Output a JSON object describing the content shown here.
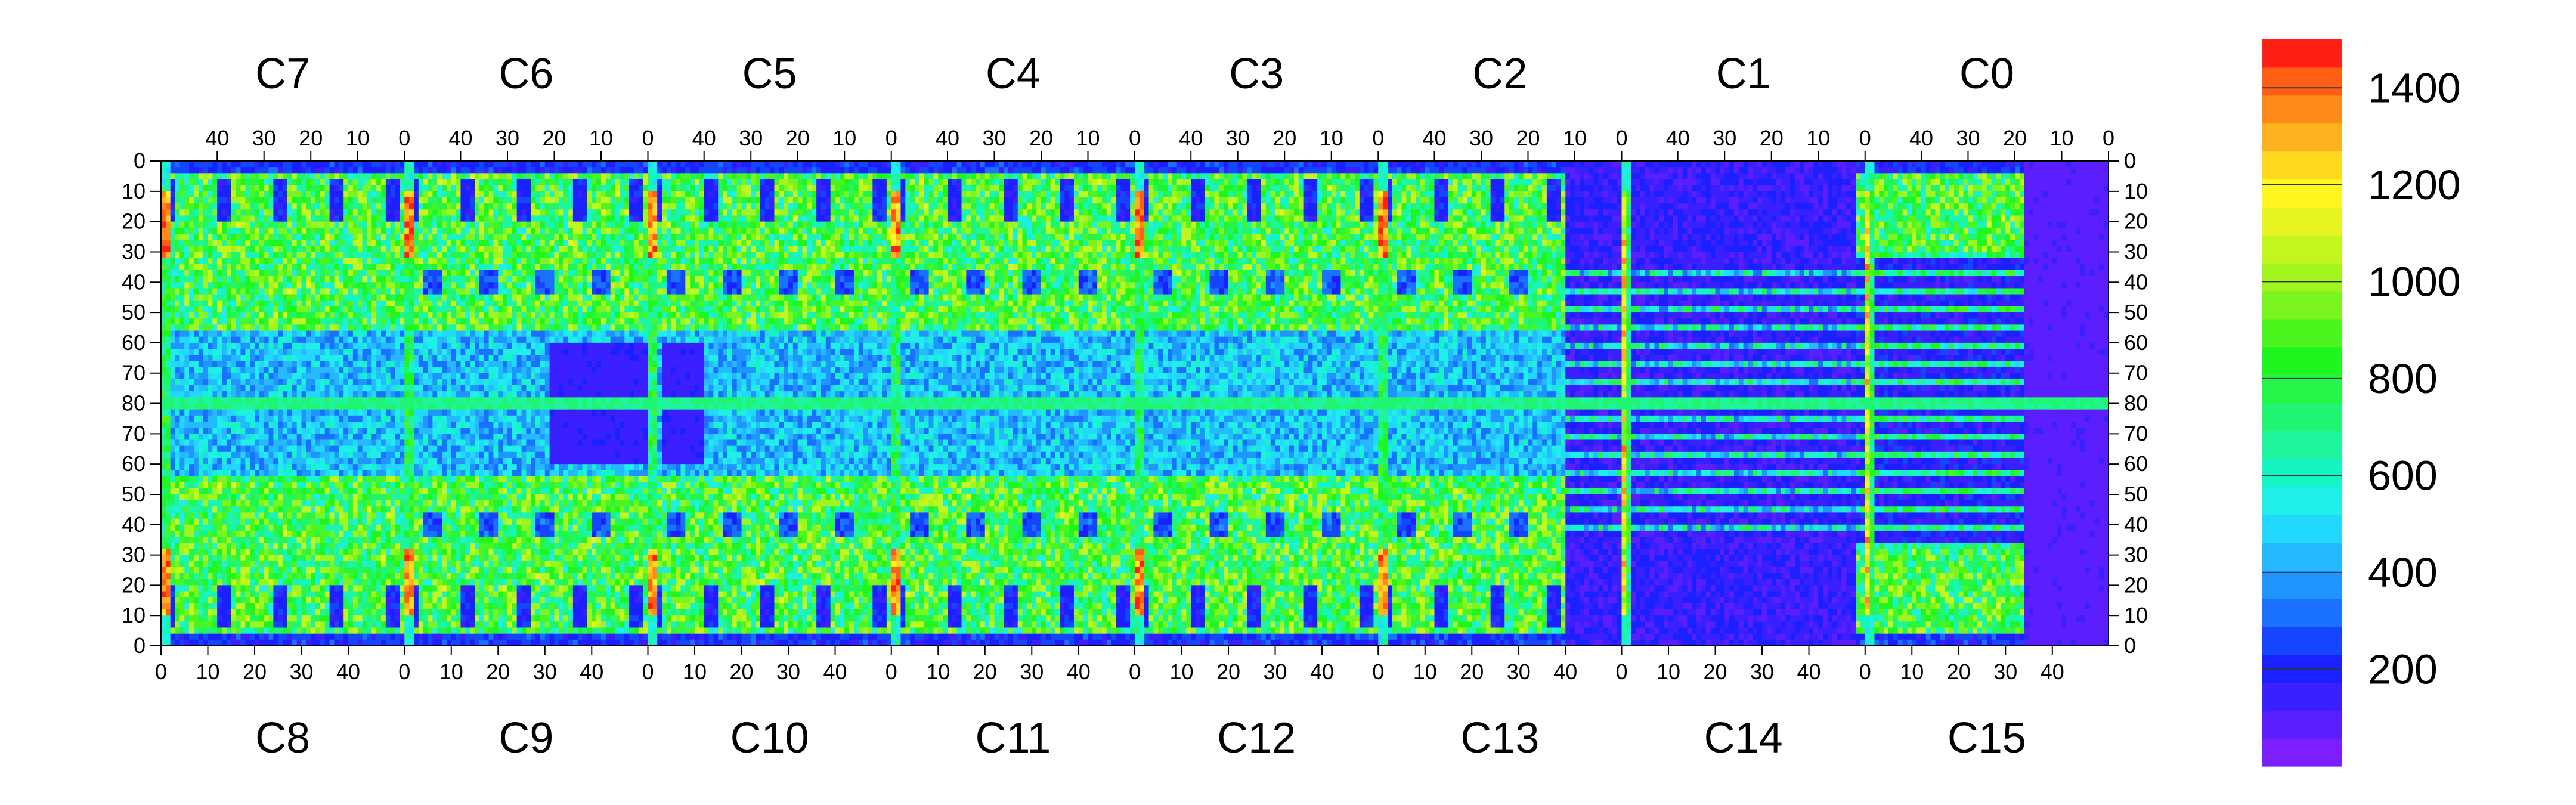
{
  "chart_data": {
    "type": "heatmap",
    "top_chip_labels": [
      "C7",
      "C6",
      "C5",
      "C4",
      "C3",
      "C2",
      "C1",
      "C0"
    ],
    "bottom_chip_labels": [
      "C8",
      "C9",
      "C10",
      "C11",
      "C12",
      "C13",
      "C14",
      "C15"
    ],
    "top_x_tick_labels": [
      "40",
      "30",
      "20",
      "10",
      "0"
    ],
    "bottom_x_tick_labels": [
      "0",
      "10",
      "20",
      "30",
      "40"
    ],
    "top_x_tick_values": [
      40,
      30,
      20,
      10,
      0
    ],
    "bottom_x_tick_values": [
      0,
      10,
      20,
      30,
      40
    ],
    "chip_columns": 52,
    "y_tick_labels": [
      "0",
      "10",
      "20",
      "30",
      "40",
      "50",
      "60",
      "70",
      "80",
      "70",
      "60",
      "50",
      "40",
      "30",
      "20",
      "10",
      "0"
    ],
    "y_range": [
      0,
      160
    ],
    "colorbar": {
      "min": 0,
      "max": 1500,
      "tick_labels": [
        "200",
        "400",
        "600",
        "800",
        "1000",
        "1200",
        "1400"
      ],
      "tick_values": [
        200,
        400,
        600,
        800,
        1000,
        1200,
        1400
      ],
      "palette": [
        "#7c1fff",
        "#5b1fff",
        "#3a1fff",
        "#1a20ff",
        "#1446ff",
        "#1a70ff",
        "#1f95ff",
        "#25baff",
        "#22d8ff",
        "#1fefe6",
        "#15f5c3",
        "#1ff59c",
        "#1ff571",
        "#25f546",
        "#1ff51f",
        "#4df51f",
        "#7af51f",
        "#a0f51f",
        "#c3f51f",
        "#e6f51f",
        "#fff51f",
        "#ffd91f",
        "#ffb21f",
        "#ff8a1a",
        "#ff5f14",
        "#ff1f14"
      ]
    },
    "description_regions": {
      "uniform_high_columns": "first column of each chip (red, ~1300-1500)",
      "central_row": "row 80, green (~700)",
      "low_region": "C13/C14 area mostly ~100-200"
    }
  }
}
